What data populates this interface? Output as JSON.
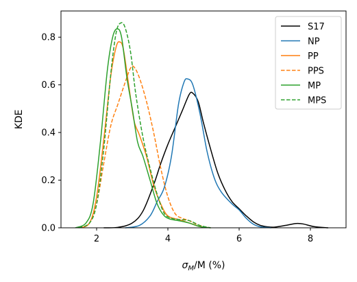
{
  "chart_data": {
    "type": "line",
    "title": "",
    "xlabel_main": "σ",
    "xlabel_sub": "M",
    "xlabel_rest": "/M (%)",
    "ylabel": "KDE",
    "xlim": [
      1.0,
      9.0
    ],
    "ylim": [
      0.0,
      0.91
    ],
    "xticks": [
      2,
      4,
      6,
      8
    ],
    "yticks": [
      0.0,
      0.2,
      0.4,
      0.6,
      0.8
    ],
    "ytick_labels": [
      "0.0",
      "0.2",
      "0.4",
      "0.6",
      "0.8"
    ],
    "grid": false,
    "legend_position": "top-right",
    "series": [
      {
        "name": "S17",
        "color": "#000000",
        "dash": "solid",
        "points": [
          [
            2.2,
            0
          ],
          [
            2.6,
            0.002
          ],
          [
            3.0,
            0.02
          ],
          [
            3.3,
            0.07
          ],
          [
            3.6,
            0.18
          ],
          [
            3.8,
            0.27
          ],
          [
            4.0,
            0.35
          ],
          [
            4.2,
            0.42
          ],
          [
            4.4,
            0.49
          ],
          [
            4.6,
            0.56
          ],
          [
            4.7,
            0.565
          ],
          [
            4.85,
            0.53
          ],
          [
            5.0,
            0.44
          ],
          [
            5.2,
            0.33
          ],
          [
            5.4,
            0.23
          ],
          [
            5.6,
            0.16
          ],
          [
            5.8,
            0.11
          ],
          [
            6.0,
            0.08
          ],
          [
            6.2,
            0.05
          ],
          [
            6.4,
            0.025
          ],
          [
            6.6,
            0.01
          ],
          [
            6.8,
            0.004
          ],
          [
            7.0,
            0.003
          ],
          [
            7.3,
            0.01
          ],
          [
            7.6,
            0.018
          ],
          [
            7.8,
            0.016
          ],
          [
            8.1,
            0.005
          ],
          [
            8.5,
            0
          ]
        ]
      },
      {
        "name": "NP",
        "color": "#1f77b4",
        "dash": "solid",
        "points": [
          [
            2.8,
            0
          ],
          [
            3.2,
            0.01
          ],
          [
            3.5,
            0.05
          ],
          [
            3.7,
            0.11
          ],
          [
            3.9,
            0.17
          ],
          [
            4.1,
            0.3
          ],
          [
            4.3,
            0.52
          ],
          [
            4.45,
            0.61
          ],
          [
            4.55,
            0.625
          ],
          [
            4.7,
            0.6
          ],
          [
            4.9,
            0.48
          ],
          [
            5.1,
            0.32
          ],
          [
            5.3,
            0.21
          ],
          [
            5.5,
            0.15
          ],
          [
            5.8,
            0.1
          ],
          [
            6.0,
            0.075
          ],
          [
            6.2,
            0.04
          ],
          [
            6.4,
            0.015
          ],
          [
            6.6,
            0.004
          ],
          [
            6.9,
            0
          ]
        ]
      },
      {
        "name": "PP",
        "color": "#ff7f0e",
        "dash": "solid",
        "points": [
          [
            1.5,
            0
          ],
          [
            1.8,
            0.02
          ],
          [
            2.0,
            0.13
          ],
          [
            2.2,
            0.37
          ],
          [
            2.4,
            0.64
          ],
          [
            2.55,
            0.76
          ],
          [
            2.65,
            0.78
          ],
          [
            2.75,
            0.75
          ],
          [
            2.9,
            0.6
          ],
          [
            3.05,
            0.45
          ],
          [
            3.2,
            0.39
          ],
          [
            3.4,
            0.3
          ],
          [
            3.6,
            0.18
          ],
          [
            3.8,
            0.1
          ],
          [
            4.0,
            0.05
          ],
          [
            4.3,
            0.035
          ],
          [
            4.6,
            0.02
          ],
          [
            4.9,
            0.005
          ],
          [
            5.2,
            0
          ]
        ]
      },
      {
        "name": "PPS",
        "color": "#ff7f0e",
        "dash": "dashed",
        "points": [
          [
            1.5,
            0
          ],
          [
            1.8,
            0.02
          ],
          [
            2.0,
            0.1
          ],
          [
            2.2,
            0.27
          ],
          [
            2.4,
            0.43
          ],
          [
            2.6,
            0.52
          ],
          [
            2.8,
            0.61
          ],
          [
            2.95,
            0.67
          ],
          [
            3.05,
            0.675
          ],
          [
            3.2,
            0.63
          ],
          [
            3.4,
            0.53
          ],
          [
            3.6,
            0.4
          ],
          [
            3.8,
            0.25
          ],
          [
            4.0,
            0.13
          ],
          [
            4.2,
            0.06
          ],
          [
            4.4,
            0.04
          ],
          [
            4.6,
            0.03
          ],
          [
            4.8,
            0.015
          ],
          [
            5.1,
            0
          ]
        ]
      },
      {
        "name": "MP",
        "color": "#2ca02c",
        "dash": "solid",
        "points": [
          [
            1.4,
            0
          ],
          [
            1.7,
            0.02
          ],
          [
            1.9,
            0.1
          ],
          [
            2.1,
            0.35
          ],
          [
            2.3,
            0.66
          ],
          [
            2.45,
            0.8
          ],
          [
            2.58,
            0.835
          ],
          [
            2.7,
            0.8
          ],
          [
            2.85,
            0.63
          ],
          [
            3.0,
            0.5
          ],
          [
            3.15,
            0.36
          ],
          [
            3.3,
            0.3
          ],
          [
            3.5,
            0.2
          ],
          [
            3.7,
            0.1
          ],
          [
            3.9,
            0.05
          ],
          [
            4.1,
            0.035
          ],
          [
            4.3,
            0.03
          ],
          [
            4.6,
            0.02
          ],
          [
            4.9,
            0.005
          ],
          [
            5.2,
            0
          ]
        ]
      },
      {
        "name": "MPS",
        "color": "#2ca02c",
        "dash": "dashed",
        "points": [
          [
            1.5,
            0
          ],
          [
            1.8,
            0.02
          ],
          [
            2.0,
            0.1
          ],
          [
            2.2,
            0.33
          ],
          [
            2.4,
            0.65
          ],
          [
            2.55,
            0.82
          ],
          [
            2.68,
            0.86
          ],
          [
            2.8,
            0.84
          ],
          [
            2.95,
            0.74
          ],
          [
            3.1,
            0.56
          ],
          [
            3.3,
            0.38
          ],
          [
            3.5,
            0.25
          ],
          [
            3.7,
            0.14
          ],
          [
            3.9,
            0.06
          ],
          [
            4.1,
            0.04
          ],
          [
            4.3,
            0.035
          ],
          [
            4.6,
            0.03
          ],
          [
            4.9,
            0.01
          ],
          [
            5.2,
            0
          ]
        ]
      }
    ]
  }
}
